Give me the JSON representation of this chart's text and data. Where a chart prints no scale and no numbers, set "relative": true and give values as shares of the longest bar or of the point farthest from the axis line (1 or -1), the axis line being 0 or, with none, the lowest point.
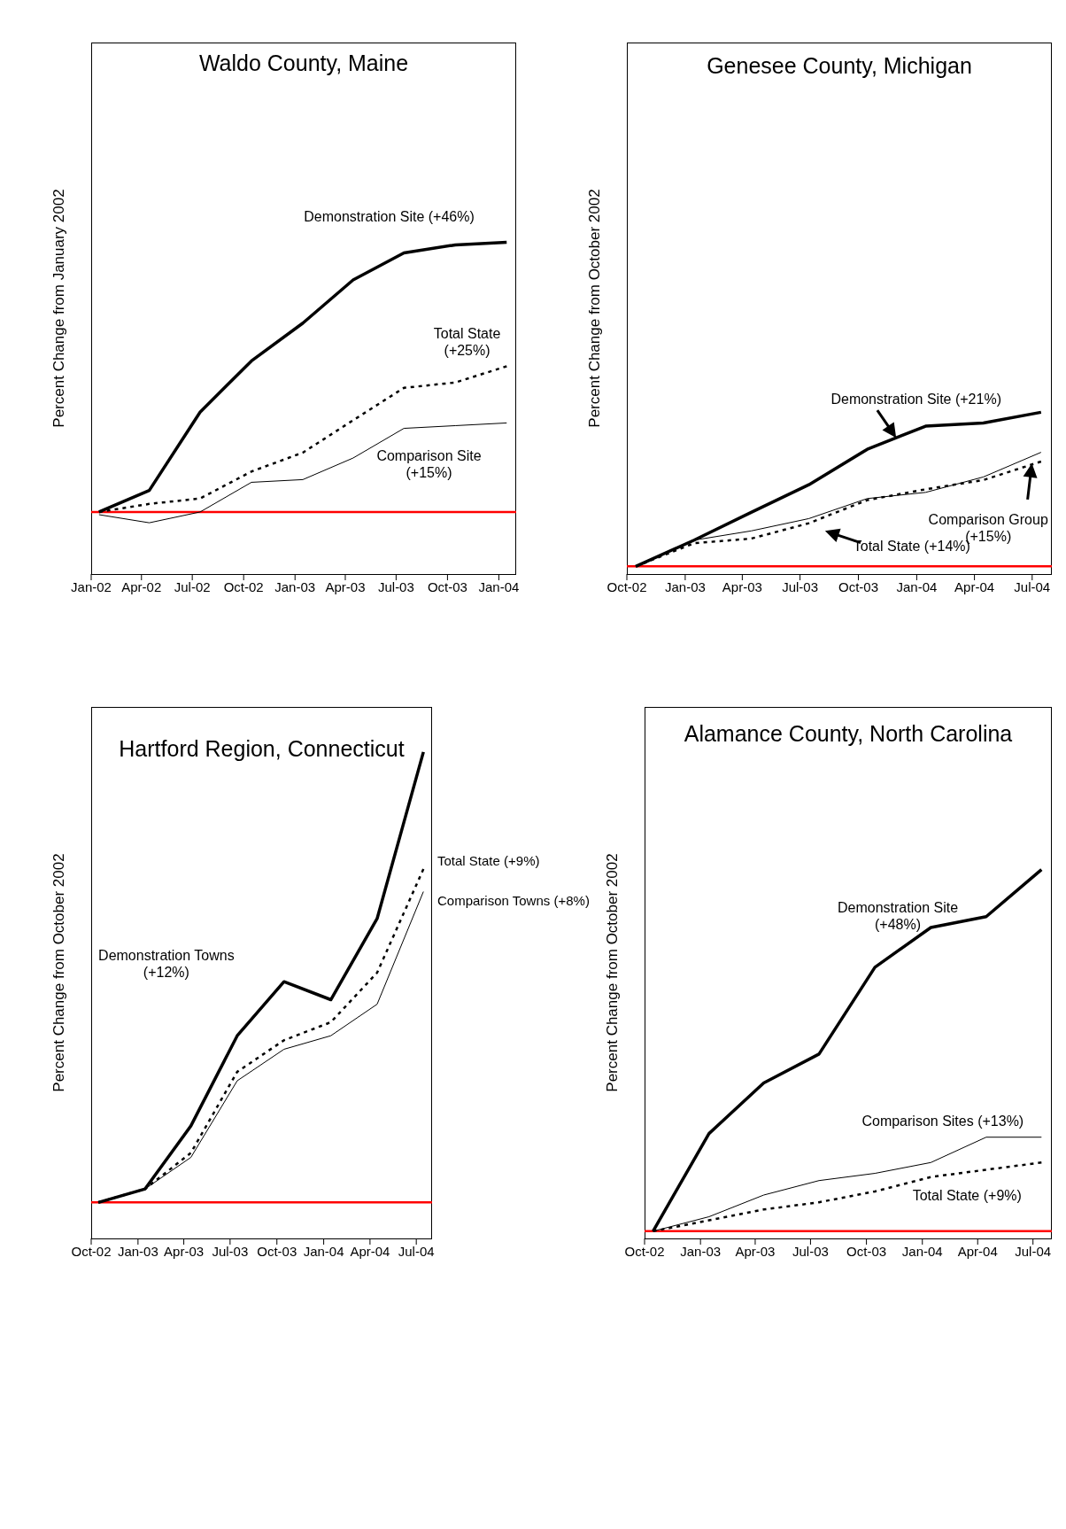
{
  "chart_data": [
    {
      "type": "line",
      "title": "Waldo County, Maine",
      "ylabel": "Percent Change from January 2002",
      "relative": true,
      "tick_labels": "x",
      "x": [
        "2002-01-15",
        "2002-04-15",
        "2002-07-15",
        "2002-10-15",
        "2003-01-15",
        "2003-04-15",
        "2003-07-15",
        "2003-10-15",
        "2004-01-15"
      ],
      "xlim": [
        "2002-01-01",
        "2004-02-01"
      ],
      "xticks": [
        {
          "value": "2002-01-01",
          "label": "Jan-02"
        },
        {
          "value": "2002-04-01",
          "label": "Apr-02"
        },
        {
          "value": "2002-07-01",
          "label": "Jul-02"
        },
        {
          "value": "2002-10-01",
          "label": "Oct-02"
        },
        {
          "value": "2003-01-01",
          "label": "Jan-03"
        },
        {
          "value": "2003-04-01",
          "label": "Apr-03"
        },
        {
          "value": "2003-07-01",
          "label": "Jul-03"
        },
        {
          "value": "2003-10-01",
          "label": "Oct-03"
        },
        {
          "value": "2004-01-01",
          "label": "Jan-04"
        }
      ],
      "series": [
        {
          "name": "Demonstration Site (+46%)",
          "color": "#000000",
          "line_style": "solid",
          "values": [
            0,
            0.08,
            0.37,
            0.56,
            0.7,
            0.86,
            0.96,
            0.99,
            1
          ]
        },
        {
          "name": "Comparison Site (+15%)",
          "color": "#000000",
          "line_style": "solid",
          "values": [
            -0.01,
            -0.04,
            0,
            0.11,
            0.12,
            0.2,
            0.31,
            0.32,
            0.33
          ]
        },
        {
          "name": "Total State (+25%)",
          "color": "#000000",
          "line_style": "dashed",
          "values": [
            0,
            0.03,
            0.05,
            0.15,
            0.22,
            0.34,
            0.46,
            0.48,
            0.54
          ]
        }
      ],
      "ref_lines": [
        {
          "axis": "y",
          "value": 0,
          "color": "#ff0000"
        }
      ]
    },
    {
      "type": "line",
      "title": "Genesee County, Michigan",
      "ylabel": "Percent Change from October 2002",
      "relative": true,
      "tick_labels": "x",
      "x": [
        "2002-10-15",
        "2003-01-15",
        "2003-04-15",
        "2003-07-15",
        "2003-10-15",
        "2004-01-15",
        "2004-04-15",
        "2004-07-15"
      ],
      "xlim": [
        "2002-10-01",
        "2004-08-01"
      ],
      "xticks": [
        {
          "value": "2002-10-01",
          "label": "Oct-02"
        },
        {
          "value": "2003-01-01",
          "label": "Jan-03"
        },
        {
          "value": "2003-04-01",
          "label": "Apr-03"
        },
        {
          "value": "2003-07-01",
          "label": "Jul-03"
        },
        {
          "value": "2003-10-01",
          "label": "Oct-03"
        },
        {
          "value": "2004-01-01",
          "label": "Jan-04"
        },
        {
          "value": "2004-04-01",
          "label": "Apr-04"
        },
        {
          "value": "2004-07-01",
          "label": "Jul-04"
        }
      ],
      "series": [
        {
          "name": "Demonstration Site (+21%)",
          "color": "#000000",
          "line_style": "solid",
          "values": [
            0,
            0.17,
            0.35,
            0.53,
            0.76,
            0.91,
            0.93,
            1
          ]
        },
        {
          "name": "Comparison Group (+15%)",
          "color": "#000000",
          "line_style": "solid",
          "values": [
            0,
            0.17,
            0.23,
            0.31,
            0.44,
            0.48,
            0.58,
            0.74
          ]
        },
        {
          "name": "Total State (+14%)",
          "color": "#000000",
          "line_style": "dashed",
          "values": [
            0,
            0.15,
            0.18,
            0.28,
            0.43,
            0.5,
            0.56,
            0.68
          ]
        }
      ],
      "ref_lines": [
        {
          "axis": "y",
          "value": 0,
          "color": "#ff0000"
        }
      ]
    },
    {
      "type": "line",
      "title": "Hartford Region, Connecticut",
      "ylabel": "Percent Change from October 2002",
      "relative": true,
      "tick_labels": "x",
      "x": [
        "2002-10-15",
        "2003-01-15",
        "2003-04-15",
        "2003-07-15",
        "2003-10-15",
        "2004-01-15",
        "2004-04-15",
        "2004-07-15"
      ],
      "xlim": [
        "2002-10-01",
        "2004-08-01"
      ],
      "xticks": [
        {
          "value": "2002-10-01",
          "label": "Oct-02"
        },
        {
          "value": "2003-01-01",
          "label": "Jan-03"
        },
        {
          "value": "2003-04-01",
          "label": "Apr-03"
        },
        {
          "value": "2003-07-01",
          "label": "Jul-03"
        },
        {
          "value": "2003-10-01",
          "label": "Oct-03"
        },
        {
          "value": "2004-01-01",
          "label": "Jan-04"
        },
        {
          "value": "2004-04-01",
          "label": "Apr-04"
        },
        {
          "value": "2004-07-01",
          "label": "Jul-04"
        }
      ],
      "series": [
        {
          "name": "Demonstration Towns (+12%)",
          "color": "#000000",
          "line_style": "solid",
          "values": [
            0,
            0.03,
            0.17,
            0.37,
            0.49,
            0.45,
            0.63,
            1
          ]
        },
        {
          "name": "Comparison Towns (+8%)",
          "color": "#000000",
          "line_style": "solid",
          "values": [
            0,
            0.03,
            0.1,
            0.27,
            0.34,
            0.37,
            0.44,
            0.69
          ]
        },
        {
          "name": "Total State (+9%)",
          "color": "#000000",
          "line_style": "dashed",
          "values": [
            0,
            0.03,
            0.11,
            0.29,
            0.36,
            0.4,
            0.51,
            0.74
          ]
        }
      ],
      "ref_lines": [
        {
          "axis": "y",
          "value": 0,
          "color": "#ff0000"
        }
      ]
    },
    {
      "type": "line",
      "title": "Alamance County, North Carolina",
      "ylabel": "Percent Change from October 2002",
      "relative": true,
      "tick_labels": "x",
      "x": [
        "2002-10-15",
        "2003-01-15",
        "2003-04-15",
        "2003-07-15",
        "2003-10-15",
        "2004-01-15",
        "2004-04-15",
        "2004-07-15"
      ],
      "xlim": [
        "2002-10-01",
        "2004-08-01"
      ],
      "xticks": [
        {
          "value": "2002-10-01",
          "label": "Oct-02"
        },
        {
          "value": "2003-01-01",
          "label": "Jan-03"
        },
        {
          "value": "2003-04-01",
          "label": "Apr-03"
        },
        {
          "value": "2003-07-01",
          "label": "Jul-03"
        },
        {
          "value": "2003-10-01",
          "label": "Oct-03"
        },
        {
          "value": "2004-01-01",
          "label": "Jan-04"
        },
        {
          "value": "2004-04-01",
          "label": "Apr-04"
        },
        {
          "value": "2004-07-01",
          "label": "Jul-04"
        }
      ],
      "series": [
        {
          "name": "Demonstration Site (+48%)",
          "color": "#000000",
          "line_style": "solid",
          "values": [
            0,
            0.27,
            0.41,
            0.49,
            0.73,
            0.84,
            0.87,
            1
          ]
        },
        {
          "name": "Comparison Sites (+13%)",
          "color": "#000000",
          "line_style": "solid",
          "values": [
            0,
            0.04,
            0.1,
            0.14,
            0.16,
            0.19,
            0.26,
            0.26
          ]
        },
        {
          "name": "Total State (+9%)",
          "color": "#000000",
          "line_style": "dashed",
          "values": [
            0,
            0.03,
            0.06,
            0.08,
            0.11,
            0.15,
            0.17,
            0.19
          ]
        }
      ],
      "ref_lines": [
        {
          "axis": "y",
          "value": 0,
          "color": "#ff0000"
        }
      ]
    }
  ]
}
